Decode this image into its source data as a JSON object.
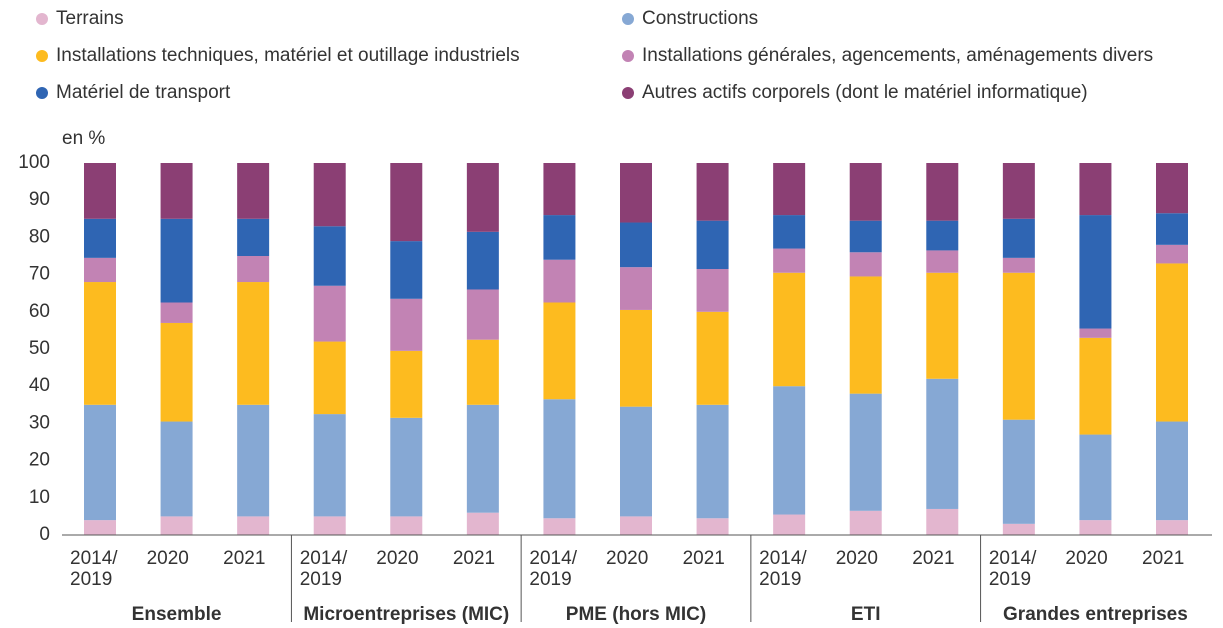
{
  "chart_data": {
    "type": "stacked_bar",
    "y_label": "en %",
    "categories": [
      "2014/\n2019",
      "2020",
      "2021",
      "2014/\n2019",
      "2020",
      "2021",
      "2014/\n2019",
      "2020",
      "2021",
      "2014/\n2019",
      "2020",
      "2021",
      "2014/\n2019",
      "2020",
      "2021"
    ],
    "groups": [
      "Ensemble",
      "Microentreprises (MIC)",
      "PME (hors MIC)",
      "ETI",
      "Grandes entreprises"
    ],
    "series": [
      {
        "name": "Terrains",
        "color": "#e3b6cf",
        "values": [
          4,
          5,
          5,
          5,
          5,
          6,
          4.5,
          5,
          4.5,
          5.5,
          6.5,
          7,
          3,
          4,
          4
        ]
      },
      {
        "name": "Constructions",
        "color": "#86a8d4",
        "values": [
          31,
          25.5,
          30,
          27.5,
          26.5,
          29,
          32,
          29.5,
          30.5,
          34.5,
          31.5,
          35,
          28,
          23,
          26.5
        ]
      },
      {
        "name": "Installations techniques, matériel et outillage industriels",
        "color": "#fdbb1f",
        "values": [
          33,
          26.5,
          33,
          19.5,
          18,
          17.5,
          26,
          26,
          25,
          30.5,
          31.5,
          28.5,
          39.5,
          26,
          42.5
        ]
      },
      {
        "name": "Installations générales, agencements, aménagements divers",
        "color": "#c283b4",
        "values": [
          6.5,
          5.5,
          7,
          15,
          14,
          13.5,
          11.5,
          11.5,
          11.5,
          6.5,
          6.5,
          6,
          4,
          2.5,
          5
        ]
      },
      {
        "name": "Matériel de transport",
        "color": "#2f65b3",
        "values": [
          10.5,
          22.5,
          10,
          16,
          15.5,
          15.5,
          12,
          12,
          13,
          9,
          8.5,
          8,
          10.5,
          30.5,
          8.5
        ]
      },
      {
        "name": "Autres actifs corporels (dont le matériel informatique)",
        "color": "#8b3f74",
        "values": [
          15,
          15,
          15,
          17,
          21,
          18.5,
          14,
          16,
          15.5,
          14,
          15.5,
          15.5,
          15,
          14,
          13.5
        ]
      }
    ],
    "ylim": [
      0,
      100
    ],
    "yticks": [
      0,
      10,
      20,
      30,
      40,
      50,
      60,
      70,
      80,
      90,
      100
    ],
    "grid": false
  }
}
